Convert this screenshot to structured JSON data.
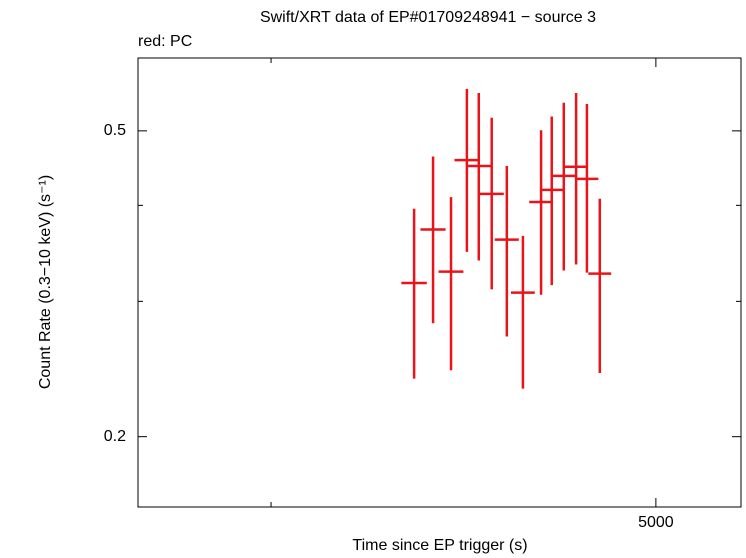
{
  "chart_data": {
    "type": "errorbar",
    "title": "Swift/XRT data of EP#01709248941 − source 3",
    "legend_text": "red: PC",
    "x_label": "Time since EP trigger (s)",
    "y_label": "Count Rate (0.3−10 keV) (s⁻¹)",
    "xscale": "log",
    "yscale": "log",
    "xlim": [
      3703,
      5253
    ],
    "ylim": [
      0.162,
      0.622
    ],
    "xticks": [
      5000
    ],
    "xminor_ticks": [
      4000
    ],
    "yticks": [
      0.2,
      0.5
    ],
    "yminor_ticks": [
      0.3,
      0.4
    ],
    "color": "#e8141a",
    "x": [
      4346,
      4394,
      4440,
      4481,
      4512,
      4546,
      4586,
      4629,
      4678,
      4707,
      4740,
      4774,
      4804,
      4840
    ],
    "xerr": [
      32,
      32,
      32,
      32,
      32,
      32,
      32,
      32,
      32,
      32,
      32,
      32,
      32,
      32
    ],
    "values": [
      0.317,
      0.372,
      0.328,
      0.458,
      0.45,
      0.414,
      0.361,
      0.308,
      0.404,
      0.419,
      0.437,
      0.449,
      0.433,
      0.326
    ],
    "err_plus": [
      0.079,
      0.091,
      0.082,
      0.109,
      0.11,
      0.106,
      0.089,
      0.057,
      0.097,
      0.103,
      0.107,
      0.111,
      0.109,
      0.082
    ],
    "err_minus": [
      0.079,
      0.091,
      0.084,
      0.11,
      0.111,
      0.103,
      0.091,
      0.077,
      0.098,
      0.104,
      0.108,
      0.114,
      0.106,
      0.084
    ]
  }
}
